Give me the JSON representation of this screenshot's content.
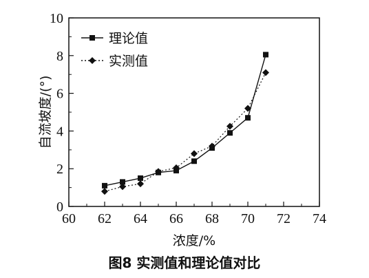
{
  "caption": "图8   实测值和理论值对比",
  "chart_data": {
    "type": "line",
    "xlabel": "浓度/%",
    "ylabel": "自流坡度/(°)",
    "xlim": [
      60,
      74
    ],
    "ylim": [
      0,
      10
    ],
    "x_ticks": [
      60,
      62,
      64,
      66,
      68,
      70,
      72,
      74
    ],
    "y_ticks": [
      0,
      2,
      4,
      6,
      8,
      10
    ],
    "x_tick_labels": [
      "60",
      "62",
      "64",
      "66",
      "68",
      "70",
      "72",
      "74"
    ],
    "y_tick_labels": [
      "0",
      "2",
      "4",
      "6",
      "8",
      "10"
    ],
    "grid": false,
    "legend_position": "top-left",
    "series": [
      {
        "name": "理论值",
        "marker": "square",
        "line_style": "solid",
        "color": "#111111",
        "x": [
          62,
          63,
          64,
          65,
          66,
          67,
          68,
          69,
          70,
          71
        ],
        "y": [
          1.1,
          1.3,
          1.5,
          1.8,
          1.9,
          2.4,
          3.1,
          3.9,
          4.7,
          8.05
        ]
      },
      {
        "name": "实测值",
        "marker": "diamond",
        "line_style": "dotted",
        "color": "#111111",
        "x": [
          62,
          63,
          64,
          65,
          66,
          67,
          68,
          69,
          70,
          71
        ],
        "y": [
          0.8,
          1.05,
          1.2,
          1.85,
          2.05,
          2.8,
          3.2,
          4.25,
          5.2,
          7.1
        ]
      }
    ]
  }
}
